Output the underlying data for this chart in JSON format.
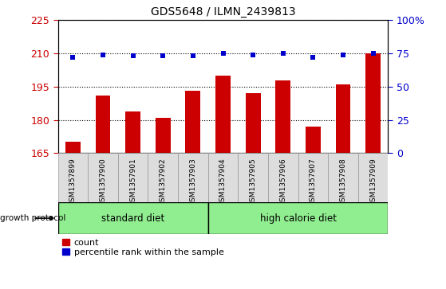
{
  "title": "GDS5648 / ILMN_2439813",
  "samples": [
    "GSM1357899",
    "GSM1357900",
    "GSM1357901",
    "GSM1357902",
    "GSM1357903",
    "GSM1357904",
    "GSM1357905",
    "GSM1357906",
    "GSM1357907",
    "GSM1357908",
    "GSM1357909"
  ],
  "counts": [
    170,
    191,
    184,
    181,
    193,
    200,
    192,
    198,
    177,
    196,
    210
  ],
  "percentiles": [
    72,
    74,
    73,
    73,
    73.5,
    75,
    74,
    75,
    72,
    74,
    75
  ],
  "ylim_left": [
    165,
    225
  ],
  "ylim_right": [
    0,
    100
  ],
  "yticks_left": [
    165,
    180,
    195,
    210,
    225
  ],
  "yticks_right": [
    0,
    25,
    50,
    75,
    100
  ],
  "group1_count": 5,
  "group2_count": 6,
  "group1_label": "standard diet",
  "group2_label": "high calorie diet",
  "group_protocol_label": "growth protocol",
  "bar_color": "#CC0000",
  "dot_color": "#0000CC",
  "tick_color_left": "#CC0000",
  "tick_color_right": "#0000CC",
  "grid_color": "black",
  "green_color": "#90EE90",
  "xtick_bg_color": "#dddddd",
  "legend_count_label": "count",
  "legend_percentile_label": "percentile rank within the sample",
  "bar_width": 0.5
}
